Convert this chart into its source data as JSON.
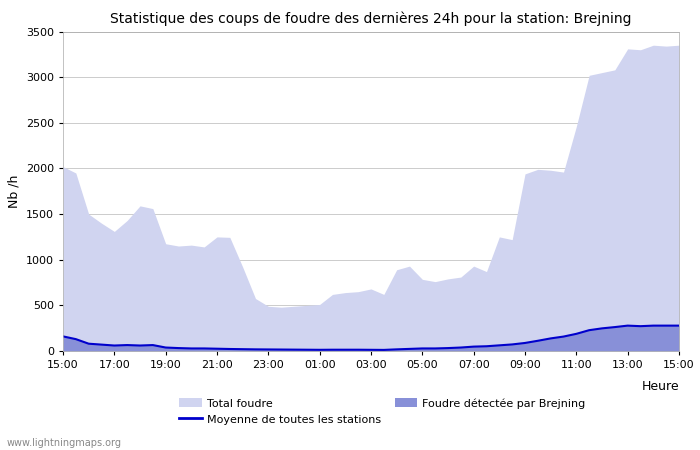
{
  "title": "Statistique des coups de foudre des dernières 24h pour la station: Brejning",
  "ylabel": "Nb /h",
  "ylim": [
    0,
    3500
  ],
  "yticks": [
    0,
    500,
    1000,
    1500,
    2000,
    2500,
    3000,
    3500
  ],
  "xtick_labels": [
    "15:00",
    "17:00",
    "19:00",
    "21:00",
    "23:00",
    "01:00",
    "03:00",
    "05:00",
    "07:00",
    "09:00",
    "11:00",
    "13:00",
    "15:00"
  ],
  "heure_label": "Heure",
  "watermark": "www.lightningmaps.org",
  "color_total": "#d0d4f0",
  "color_brejning": "#8890d8",
  "color_moyenne": "#0000cc",
  "total_foudre": [
    2020,
    1950,
    1500,
    1400,
    1310,
    1430,
    1590,
    1560,
    1175,
    1150,
    1160,
    1140,
    1250,
    1245,
    920,
    575,
    490,
    480,
    490,
    500,
    510,
    620,
    640,
    650,
    680,
    620,
    890,
    930,
    785,
    760,
    790,
    810,
    930,
    870,
    1250,
    1220,
    1940,
    1990,
    1980,
    1960,
    2460,
    3020,
    3050,
    3080,
    3310,
    3300,
    3350,
    3340,
    3350
  ],
  "brejning": [
    155,
    135,
    85,
    75,
    65,
    70,
    65,
    70,
    40,
    35,
    30,
    30,
    28,
    25,
    22,
    20,
    18,
    17,
    16,
    15,
    14,
    15,
    15,
    15,
    14,
    13,
    20,
    25,
    30,
    30,
    35,
    40,
    50,
    55,
    65,
    75,
    90,
    115,
    140,
    160,
    190,
    230,
    250,
    265,
    280,
    275,
    280,
    280,
    280
  ],
  "moyenne": [
    160,
    130,
    80,
    70,
    60,
    65,
    60,
    65,
    38,
    32,
    28,
    28,
    25,
    22,
    20,
    18,
    17,
    16,
    15,
    14,
    13,
    14,
    14,
    14,
    13,
    12,
    18,
    23,
    28,
    28,
    32,
    38,
    48,
    52,
    62,
    72,
    88,
    112,
    138,
    158,
    188,
    228,
    248,
    262,
    278,
    272,
    278,
    278,
    278
  ],
  "n_points": 49,
  "background_color": "#ffffff",
  "plot_bg_color": "#ffffff",
  "grid_color": "#cccccc"
}
